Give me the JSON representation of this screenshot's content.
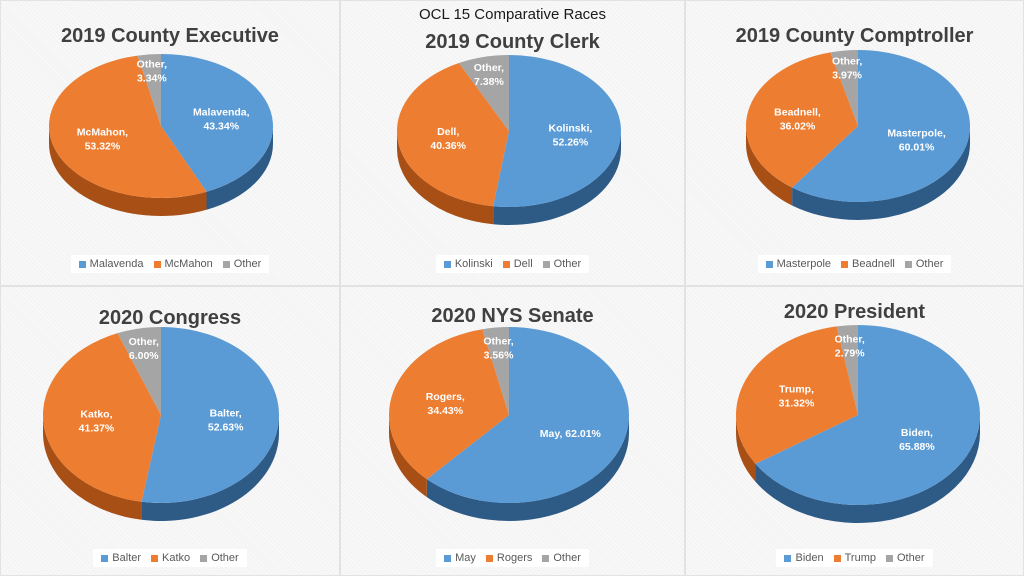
{
  "page_title": "OCL 15 Comparative Races",
  "colors": {
    "blue": "#5b9bd5",
    "blue_side": "#2e5a86",
    "orange": "#ed7d31",
    "orange_side": "#a84f15",
    "gray": "#a5a5a5",
    "gray_side": "#6f6f6f"
  },
  "chart_data": [
    {
      "type": "pie",
      "title": "2019 County Executive",
      "labels": [
        "Malavenda",
        "McMahon",
        "Other"
      ],
      "values": [
        43.34,
        53.32,
        3.34
      ],
      "data_labels": [
        [
          "Malavenda,",
          "43.34%"
        ],
        [
          "McMahon,",
          "53.32%"
        ],
        [
          "Other,",
          "3.34%"
        ]
      ],
      "legend": [
        "Malavenda",
        "McMahon",
        "Other"
      ],
      "legend_position": "bottom"
    },
    {
      "type": "pie",
      "title": "2019 County Clerk",
      "labels": [
        "Kolinski",
        "Dell",
        "Other"
      ],
      "values": [
        52.26,
        40.36,
        7.38
      ],
      "data_labels": [
        [
          "Kolinski,",
          "52.26%"
        ],
        [
          "Dell,",
          "40.36%"
        ],
        [
          "Other,",
          "7.38%"
        ]
      ],
      "legend": [
        "Kolinski",
        "Dell",
        "Other"
      ],
      "legend_position": "bottom"
    },
    {
      "type": "pie",
      "title": "2019 County Comptroller",
      "labels": [
        "Masterpole",
        "Beadnell",
        "Other"
      ],
      "values": [
        60.01,
        36.02,
        3.97
      ],
      "data_labels": [
        [
          "Masterpole,",
          "60.01%"
        ],
        [
          "Beadnell,",
          "36.02%"
        ],
        [
          "Other,",
          "3.97%"
        ]
      ],
      "legend": [
        "Masterpole",
        "Beadnell",
        "Other"
      ],
      "legend_position": "bottom"
    },
    {
      "type": "pie",
      "title": "2020 Congress",
      "labels": [
        "Balter",
        "Katko",
        "Other"
      ],
      "values": [
        52.63,
        41.37,
        6.0
      ],
      "data_labels": [
        [
          "Balter,",
          "52.63%"
        ],
        [
          "Katko,",
          "41.37%"
        ],
        [
          "Other,",
          "6.00%"
        ]
      ],
      "legend": [
        "Balter",
        "Katko",
        "Other"
      ],
      "legend_position": "bottom"
    },
    {
      "type": "pie",
      "title": "2020 NYS Senate",
      "labels": [
        "May",
        "Rogers",
        "Other"
      ],
      "values": [
        62.01,
        34.43,
        3.56
      ],
      "data_labels": [
        [
          "May, 62.01%"
        ],
        [
          "Rogers,",
          "34.43%"
        ],
        [
          "Other,",
          "3.56%"
        ]
      ],
      "legend": [
        "May",
        "Rogers",
        "Other"
      ],
      "legend_position": "bottom"
    },
    {
      "type": "pie",
      "title": "2020 President",
      "labels": [
        "Biden",
        "Trump",
        "Other"
      ],
      "values": [
        65.88,
        31.32,
        2.79
      ],
      "data_labels": [
        [
          "Biden,",
          "65.88%"
        ],
        [
          "Trump,",
          "31.32%"
        ],
        [
          "Other,",
          "2.79%"
        ]
      ],
      "legend": [
        "Biden",
        "Trump",
        "Other"
      ],
      "legend_position": "bottom"
    }
  ]
}
